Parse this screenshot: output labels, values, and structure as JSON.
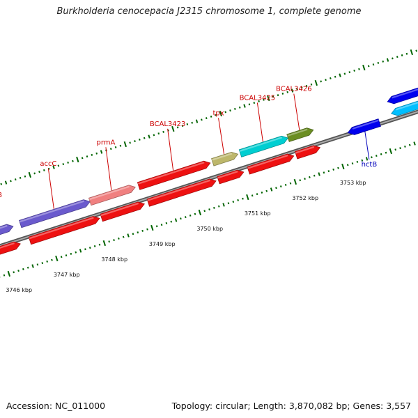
{
  "title": "Burkholderia cenocepacia J2315 chromosome 1, complete genome",
  "accession": "Accession: NC_011000",
  "summary": "Topology: circular; Length: 3,870,082 bp; Genes: 3,557",
  "colors": {
    "red": "#ee1111",
    "purple": "#6a5acd",
    "salmon": "#f08080",
    "khaki": "#bdb76b",
    "turquoise": "#00ced1",
    "olive": "#6b8e23",
    "steelblue": "#4682b4",
    "blue": "#0000ee",
    "deepskyblue": "#00bfff",
    "tick": "#006400",
    "backbone": "#777777"
  },
  "genes": [
    {
      "id": "bot-a",
      "name": "",
      "start": 3745.6,
      "end": 3745.85,
      "strand": "reverse",
      "color": "red"
    },
    {
      "id": "bot-b",
      "name": "",
      "start": 3745.9,
      "end": 3746.4,
      "strand": "forward",
      "color": "red"
    },
    {
      "id": "bot-c",
      "name": "",
      "start": 3746.6,
      "end": 3748.06,
      "strand": "forward",
      "color": "red"
    },
    {
      "id": "bot-d",
      "name": "",
      "start": 3748.1,
      "end": 3749.0,
      "strand": "forward",
      "color": "red"
    },
    {
      "id": "bot-e",
      "name": "",
      "start": 3749.08,
      "end": 3750.5,
      "strand": "forward",
      "color": "red"
    },
    {
      "id": "bot-f",
      "name": "",
      "start": 3750.55,
      "end": 3751.08,
      "strand": "forward",
      "color": "red"
    },
    {
      "id": "bot-g",
      "name": "",
      "start": 3751.18,
      "end": 3752.13,
      "strand": "forward",
      "color": "red"
    },
    {
      "id": "bot-h",
      "name": "",
      "start": 3752.18,
      "end": 3752.68,
      "strand": "forward",
      "color": "red"
    },
    {
      "id": "bot-i",
      "name": "",
      "start": 3753.3,
      "end": 3753.96,
      "strand": "reverse",
      "color": "blue"
    },
    {
      "id": "bot-j",
      "name": "",
      "start": 3754.24,
      "end": 3755.4,
      "strand": "reverse",
      "color": "blue"
    },
    {
      "id": "bot-k",
      "name": "",
      "start": 3754.24,
      "end": 3755.4,
      "strand": "reverse",
      "color": "deepskyblue"
    },
    {
      "id": "top-a",
      "name": "",
      "start": 3745.6,
      "end": 3745.78,
      "strand": "forward",
      "color": "steelblue"
    },
    {
      "id": "accB",
      "name": "accB",
      "start": 3745.84,
      "end": 3746.37,
      "strand": "forward",
      "color": "purple"
    },
    {
      "id": "accC",
      "name": "accC",
      "start": 3746.52,
      "end": 3747.98,
      "strand": "forward",
      "color": "purple"
    },
    {
      "id": "prmA",
      "name": "prmA",
      "start": 3747.98,
      "end": 3748.93,
      "strand": "forward",
      "color": "salmon"
    },
    {
      "id": "BCAL3423",
      "name": "BCAL3423",
      "start": 3749.0,
      "end": 3750.5,
      "strand": "forward",
      "color": "red"
    },
    {
      "id": "tpx",
      "name": "tpx",
      "start": 3750.55,
      "end": 3751.08,
      "strand": "forward",
      "color": "khaki"
    },
    {
      "id": "BCAL3425",
      "name": "BCAL3425",
      "start": 3751.13,
      "end": 3752.13,
      "strand": "forward",
      "color": "turquoise"
    },
    {
      "id": "BCAL3426",
      "name": "BCAL3426",
      "start": 3752.13,
      "end": 3752.66,
      "strand": "forward",
      "color": "olive"
    },
    {
      "id": "hctB",
      "name": "hctB",
      "start": 3753.3,
      "end": 3753.96,
      "strand": "reverse",
      "color": "blue"
    }
  ],
  "ticks": [
    {
      "pos": 3746,
      "label": "3746 kbp"
    },
    {
      "pos": 3747,
      "label": "3747 kbp"
    },
    {
      "pos": 3748,
      "label": "3748 kbp"
    },
    {
      "pos": 3749,
      "label": "3749 kbp"
    },
    {
      "pos": 3750,
      "label": "3750 kbp"
    },
    {
      "pos": 3751,
      "label": "3751 kbp"
    },
    {
      "pos": 3752,
      "label": "3752 kbp"
    },
    {
      "pos": 3753,
      "label": "3753 kbp"
    }
  ]
}
